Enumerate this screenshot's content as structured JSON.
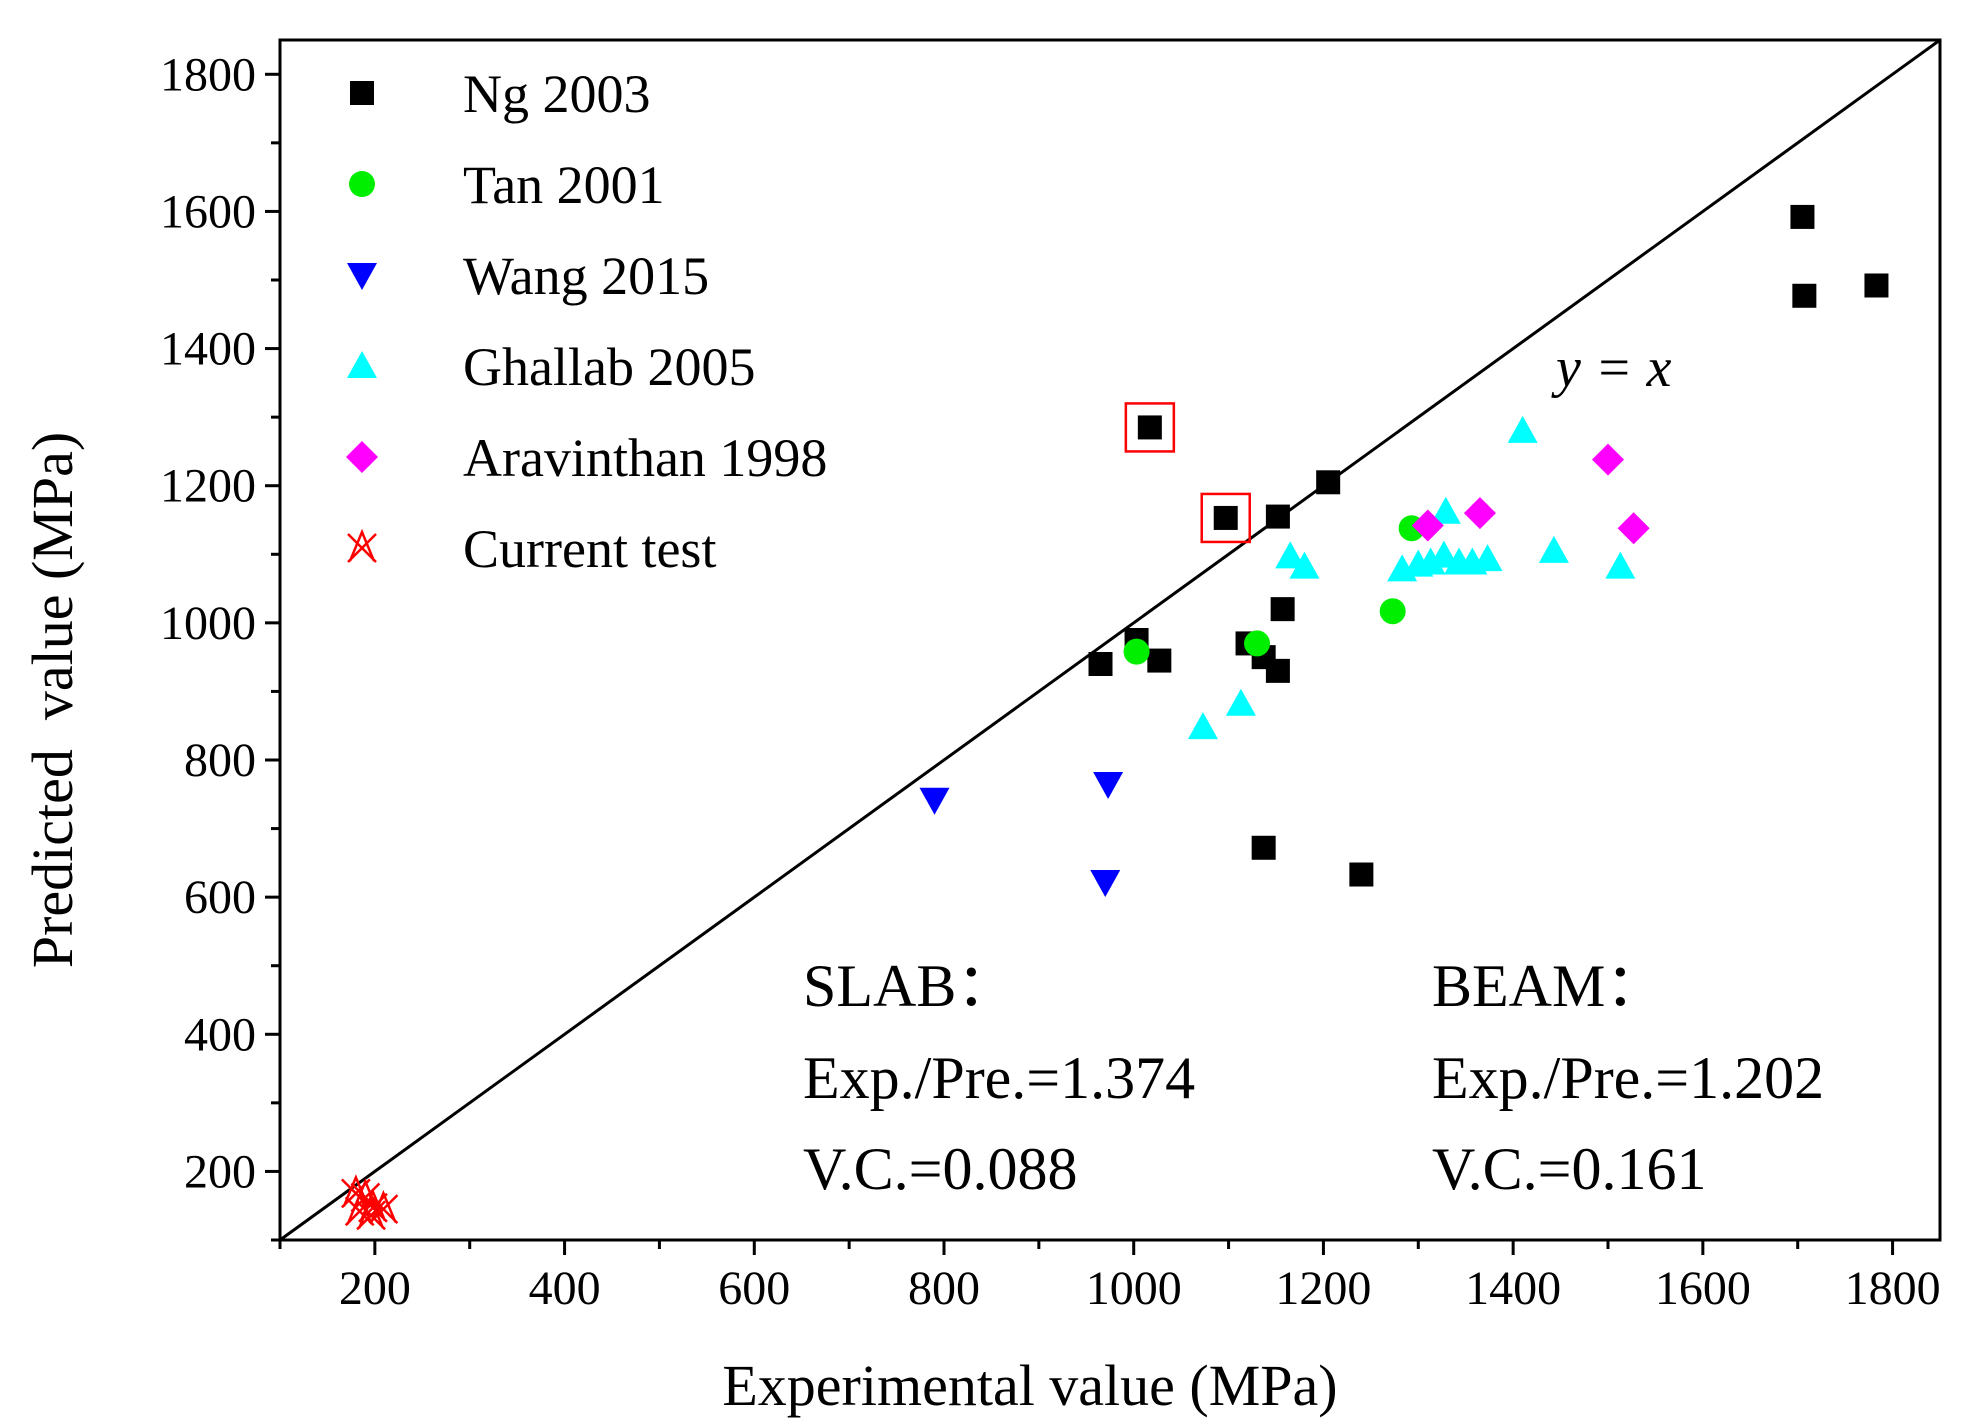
{
  "chart_data": {
    "type": "scatter",
    "title": "",
    "xlabel": "Experimental value (MPa)",
    "ylabel": "Predicted  value (MPa)",
    "xlim": [
      100,
      1850
    ],
    "ylim": [
      100,
      1850
    ],
    "xticks": [
      200,
      400,
      600,
      800,
      1000,
      1200,
      1400,
      1600,
      1800
    ],
    "yticks": [
      200,
      400,
      600,
      800,
      1000,
      1200,
      1400,
      1600,
      1800
    ],
    "reference_line": {
      "label": "y = x",
      "slope": 1,
      "intercept": 0
    },
    "legend_position": "top-left",
    "series": [
      {
        "name": "Ng 2003",
        "marker": "square",
        "color": "#000000",
        "points": [
          [
            1003,
            975
          ],
          [
            965,
            940
          ],
          [
            1027,
            945
          ],
          [
            1120,
            970
          ],
          [
            1137,
            950
          ],
          [
            1152,
            930
          ],
          [
            1157,
            1020
          ],
          [
            1152,
            1155
          ],
          [
            1205,
            1205
          ],
          [
            1097,
            1153
          ],
          [
            1017,
            1285
          ],
          [
            1137,
            672
          ],
          [
            1240,
            633
          ],
          [
            1705,
            1592
          ],
          [
            1707,
            1477
          ],
          [
            1783,
            1492
          ]
        ]
      },
      {
        "name": "Tan 2001",
        "marker": "circle",
        "color": "#00ee00",
        "points": [
          [
            1003,
            958
          ],
          [
            1130,
            970
          ],
          [
            1273,
            1017
          ],
          [
            1293,
            1138
          ]
        ]
      },
      {
        "name": "Wang 2015",
        "marker": "triangle-down",
        "color": "#0000ff",
        "points": [
          [
            790,
            742
          ],
          [
            973,
            765
          ],
          [
            970,
            622
          ]
        ]
      },
      {
        "name": "Ghallab 2005",
        "marker": "triangle-up",
        "color": "#00ffff",
        "points": [
          [
            1073,
            848
          ],
          [
            1113,
            882
          ],
          [
            1165,
            1097
          ],
          [
            1180,
            1082
          ],
          [
            1283,
            1078
          ],
          [
            1300,
            1085
          ],
          [
            1313,
            1088
          ],
          [
            1327,
            1098
          ],
          [
            1329,
            1162
          ],
          [
            1343,
            1088
          ],
          [
            1357,
            1088
          ],
          [
            1373,
            1093
          ],
          [
            1410,
            1280
          ],
          [
            1443,
            1105
          ],
          [
            1513,
            1082
          ]
        ]
      },
      {
        "name": "Aravinthan 1998",
        "marker": "diamond",
        "color": "#ff00ff",
        "points": [
          [
            1310,
            1142
          ],
          [
            1365,
            1160
          ],
          [
            1500,
            1238
          ],
          [
            1527,
            1138
          ]
        ]
      },
      {
        "name": "Current test",
        "marker": "star-x",
        "color": "#ff0000",
        "points": [
          [
            180,
            168
          ],
          [
            190,
            162
          ],
          [
            184,
            142
          ],
          [
            198,
            147
          ],
          [
            209,
            145
          ],
          [
            196,
            136
          ]
        ]
      }
    ],
    "highlighted_points": [
      [
        1017,
        1285
      ],
      [
        1097,
        1153
      ]
    ],
    "annotations": {
      "slab": {
        "heading": "SLAB：",
        "ratio": "Exp./Pre.=1.374",
        "vc": "V.C.=0.088"
      },
      "beam": {
        "heading": "BEAM：",
        "ratio": "Exp./Pre.=1.202",
        "vc": "V.C.=0.161"
      }
    }
  }
}
